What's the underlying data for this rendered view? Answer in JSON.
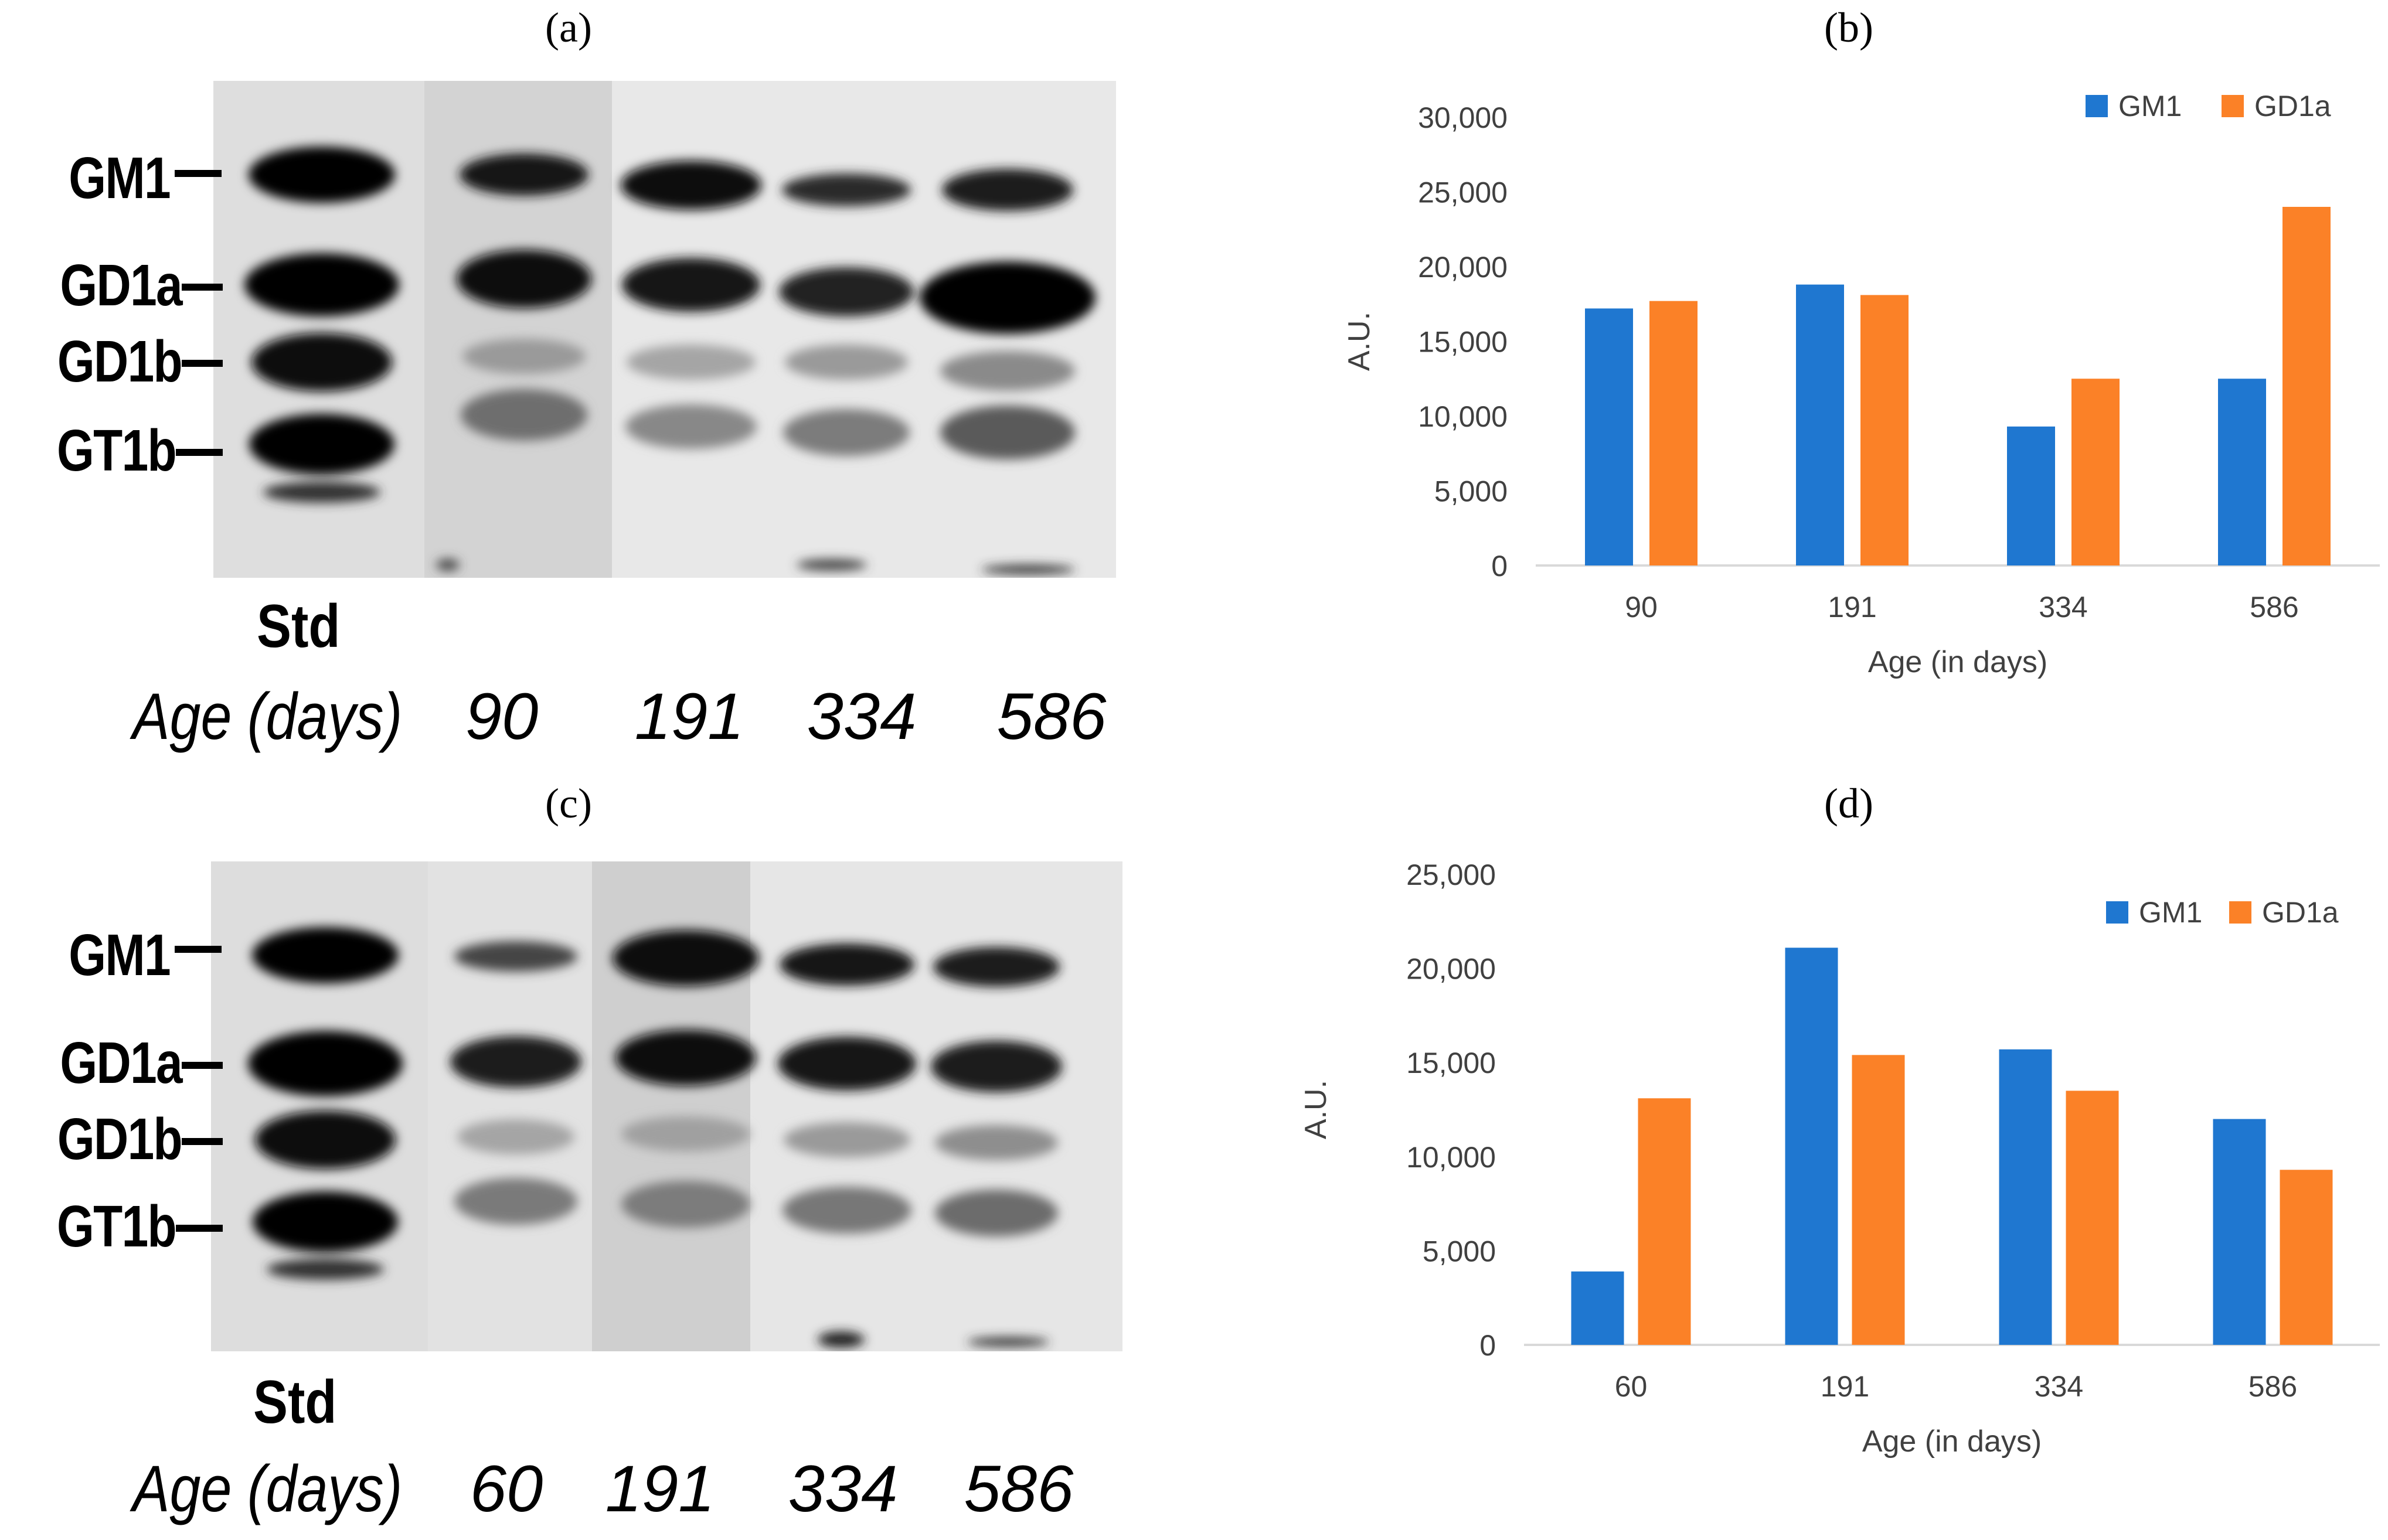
{
  "panels": {
    "a": "(a)",
    "b": "(b)",
    "c": "(c)",
    "d": "(d)"
  },
  "blots": [
    {
      "bands": [
        "GM1",
        "GD1a",
        "GD1b",
        "GT1b"
      ],
      "std_label": "Std",
      "age_label": "Age (days)",
      "lane_ages": [
        "90",
        "191",
        "334",
        "586"
      ]
    },
    {
      "bands": [
        "GM1",
        "GD1a",
        "GD1b",
        "GT1b"
      ],
      "std_label": "Std",
      "age_label": "Age (days)",
      "lane_ages": [
        "60",
        "191",
        "334",
        "586"
      ]
    }
  ],
  "colors": {
    "GM1": "#1f77d0",
    "GD1a": "#fb8127",
    "axis": "#d9d9d9",
    "text": "#404040"
  },
  "chart_data": [
    {
      "type": "bar",
      "categories": [
        "90",
        "191",
        "334",
        "586"
      ],
      "series": [
        {
          "name": "GM1",
          "values": [
            17200,
            18800,
            9300,
            12500
          ]
        },
        {
          "name": "GD1a",
          "values": [
            17700,
            18100,
            12500,
            24000
          ]
        }
      ],
      "xlabel": "Age (in days)",
      "ylabel": "A.U.",
      "ylim": [
        0,
        30000
      ],
      "yticks": [
        "0",
        "5,000",
        "10,000",
        "15,000",
        "20,000",
        "25,000",
        "30,000"
      ],
      "legend": "top-right",
      "grid": false
    },
    {
      "type": "bar",
      "categories": [
        "60",
        "191",
        "334",
        "586"
      ],
      "series": [
        {
          "name": "GM1",
          "values": [
            3900,
            21100,
            15700,
            12000
          ]
        },
        {
          "name": "GD1a",
          "values": [
            13100,
            15400,
            13500,
            9300
          ]
        }
      ],
      "xlabel": "Age (in days)",
      "ylabel": "A.U.",
      "ylim": [
        0,
        25000
      ],
      "yticks": [
        "0",
        "5,000",
        "10,000",
        "15,000",
        "20,000",
        "25,000"
      ],
      "legend": "top-right",
      "grid": false
    }
  ]
}
